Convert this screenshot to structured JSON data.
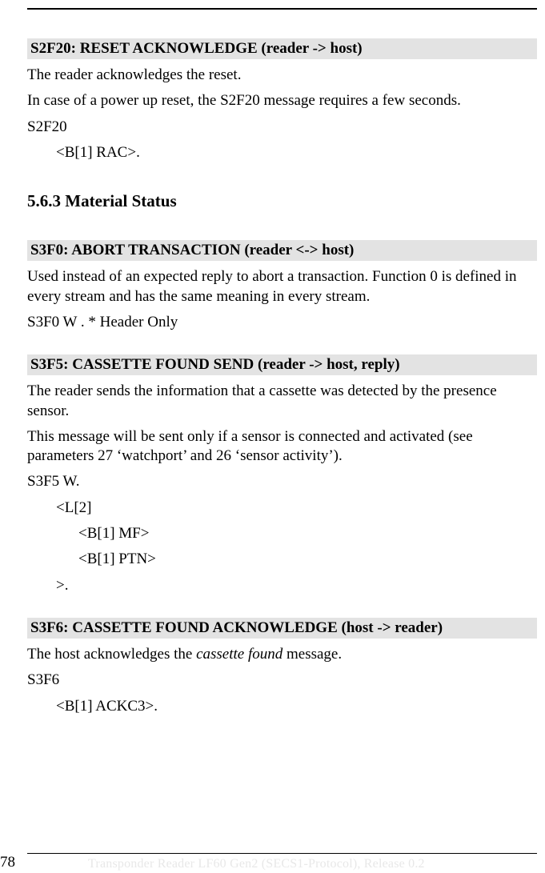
{
  "colors": {
    "section_bg": "#e3e3e3",
    "text": "#000000",
    "page_bg": "#ffffff",
    "footer_faint": "#e8e8e8",
    "rule": "#000000"
  },
  "fonts": {
    "body_family": "Times New Roman",
    "body_size_pt": 14,
    "heading_size_pt": 14,
    "subsection_size_pt": 16
  },
  "s2f20": {
    "heading": "S2F20:  RESET ACKNOWLEDGE (reader -> host)",
    "p1": "The reader acknowledges the reset.",
    "p2": "In case of a power up reset, the S2F20 message requires a few seconds.",
    "code1": "S2F20",
    "code2": "<B[1] RAC>."
  },
  "sub": {
    "title": "5.6.3  Material Status"
  },
  "s3f0": {
    "heading": "S3F0:  ABORT TRANSACTION  (reader <-> host)",
    "p1": "Used instead of an expected reply to abort a transaction. Function 0 is defined in every stream and has the same meaning in every stream.",
    "code1": "S3F0 W . * Header Only"
  },
  "s3f5": {
    "heading": "S3F5:  CASSETTE FOUND SEND (reader  -> host, reply)",
    "p1": "The reader sends the information that a cassette was detected by the presence sensor.",
    "p2": "This message will be sent only if a sensor is connected and activated (see parameters 27 ‘watchport’ and 26 ‘sensor activity’).",
    "code1": "S3F5 W.",
    "code2": "<L[2]",
    "code3": "<B[1] MF>",
    "code4": "<B[1] PTN>",
    "code5": ">."
  },
  "s3f6": {
    "heading": "S3F6:  CASSETTE FOUND ACKNOWLEDGE (host -> reader)",
    "p1a": "The host acknowledges the ",
    "p1b": "cassette found",
    "p1c": " message.",
    "code1": "S3F6",
    "code2": "<B[1] ACKC3>."
  },
  "footer": {
    "page_no": "78",
    "text": "Transponder Reader LF60 Gen2 (SECS1-Protocol), Release 0.2"
  }
}
